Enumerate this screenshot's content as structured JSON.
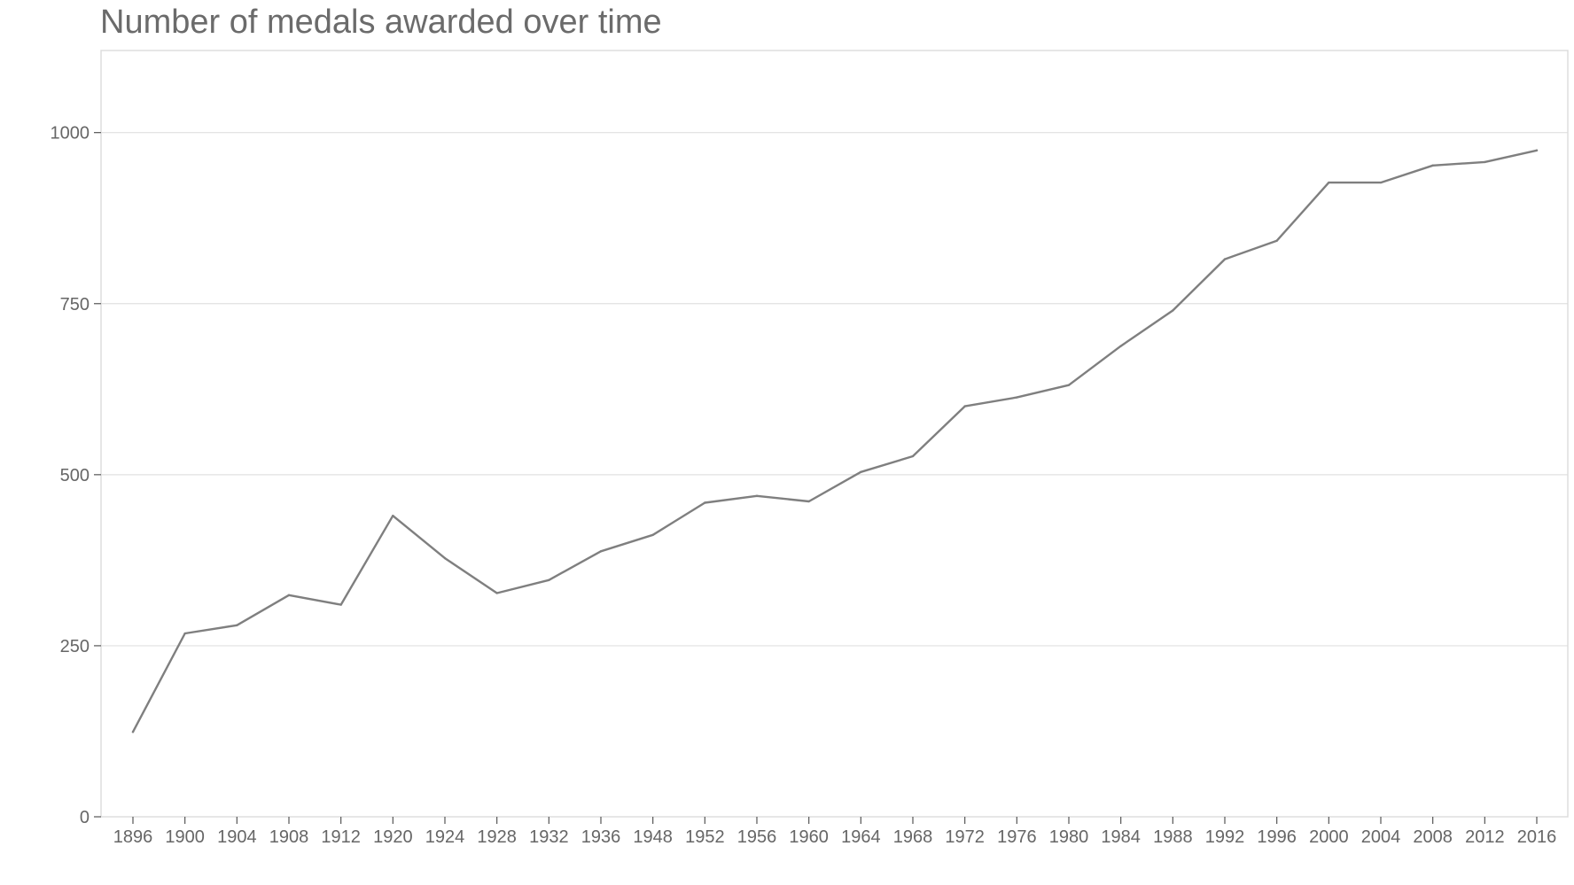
{
  "chart_data": {
    "type": "line",
    "title": "Number of medals awarded over time",
    "xlabel": "",
    "ylabel": "",
    "ylim": [
      0,
      1120
    ],
    "yticks": [
      0,
      250,
      500,
      750,
      1000
    ],
    "grid": true,
    "categories": [
      "1896",
      "1900",
      "1904",
      "1908",
      "1912",
      "1920",
      "1924",
      "1928",
      "1932",
      "1936",
      "1948",
      "1952",
      "1956",
      "1960",
      "1964",
      "1968",
      "1972",
      "1976",
      "1980",
      "1984",
      "1988",
      "1992",
      "1996",
      "2000",
      "2004",
      "2008",
      "2012",
      "2016"
    ],
    "series": [
      {
        "color": "#7f7f7f",
        "values": [
          124,
          268,
          280,
          324,
          310,
          440,
          378,
          327,
          346,
          388,
          412,
          459,
          469,
          461,
          504,
          527,
          600,
          613,
          631,
          688,
          740,
          815,
          842,
          927,
          927,
          952,
          957,
          974
        ]
      }
    ]
  }
}
